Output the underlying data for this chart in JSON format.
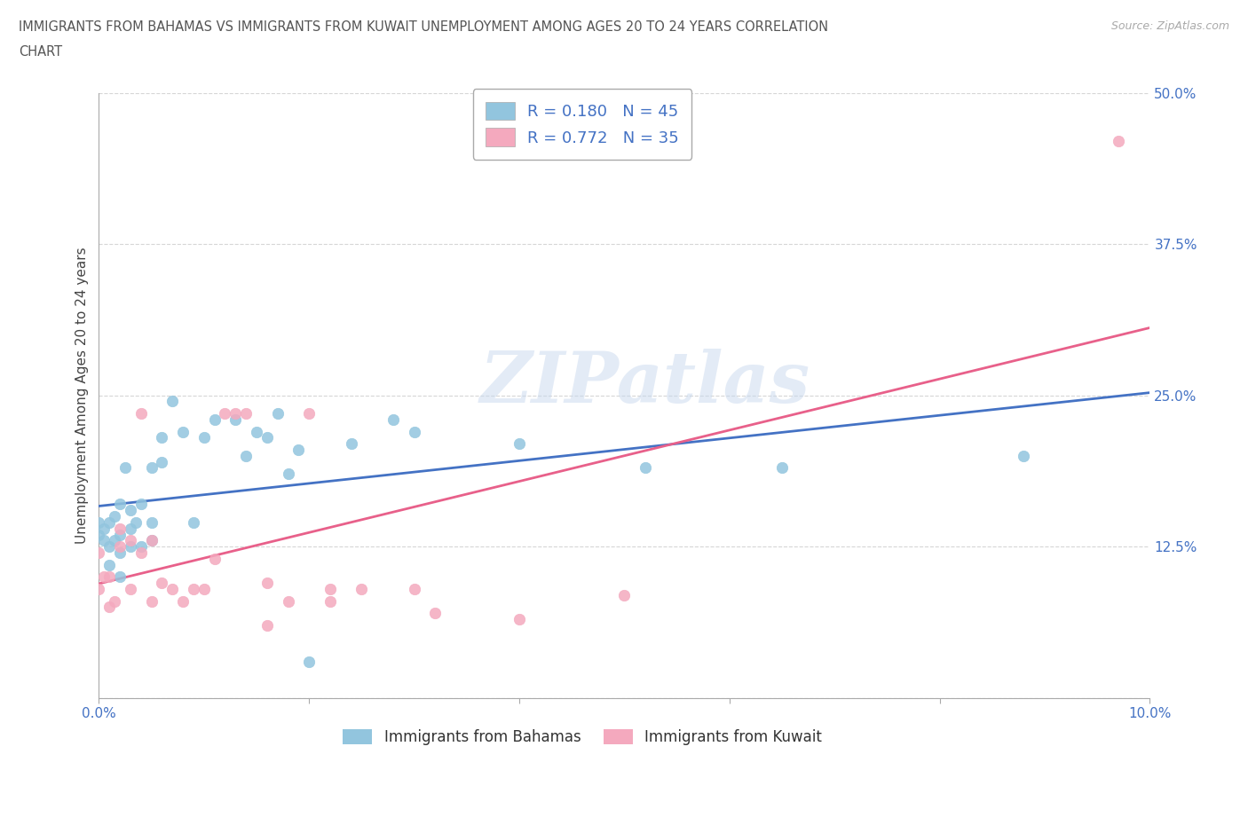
{
  "title_line1": "IMMIGRANTS FROM BAHAMAS VS IMMIGRANTS FROM KUWAIT UNEMPLOYMENT AMONG AGES 20 TO 24 YEARS CORRELATION",
  "title_line2": "CHART",
  "source": "Source: ZipAtlas.com",
  "ylabel": "Unemployment Among Ages 20 to 24 years",
  "xlim": [
    0.0,
    0.1
  ],
  "ylim": [
    0.0,
    0.5
  ],
  "yticks": [
    0.0,
    0.125,
    0.25,
    0.375,
    0.5
  ],
  "ytick_labels": [
    "",
    "12.5%",
    "25.0%",
    "37.5%",
    "50.0%"
  ],
  "xtick_positions": [
    0.0,
    0.02,
    0.04,
    0.06,
    0.08,
    0.1
  ],
  "watermark": "ZIPatlas",
  "bahamas_color": "#92c5de",
  "kuwait_color": "#f4a9be",
  "bahamas_line_color": "#4472c4",
  "kuwait_line_color": "#e8608a",
  "bahamas_R": 0.18,
  "bahamas_N": 45,
  "kuwait_R": 0.772,
  "kuwait_N": 35,
  "bahamas_x": [
    0.0,
    0.0,
    0.0005,
    0.0005,
    0.001,
    0.001,
    0.001,
    0.0015,
    0.0015,
    0.002,
    0.002,
    0.002,
    0.002,
    0.0025,
    0.003,
    0.003,
    0.003,
    0.0035,
    0.004,
    0.004,
    0.005,
    0.005,
    0.005,
    0.006,
    0.006,
    0.007,
    0.008,
    0.009,
    0.01,
    0.011,
    0.013,
    0.014,
    0.015,
    0.016,
    0.017,
    0.018,
    0.019,
    0.02,
    0.024,
    0.028,
    0.03,
    0.04,
    0.052,
    0.065,
    0.088
  ],
  "bahamas_y": [
    0.135,
    0.145,
    0.13,
    0.14,
    0.11,
    0.125,
    0.145,
    0.13,
    0.15,
    0.1,
    0.12,
    0.135,
    0.16,
    0.19,
    0.125,
    0.14,
    0.155,
    0.145,
    0.125,
    0.16,
    0.13,
    0.145,
    0.19,
    0.195,
    0.215,
    0.245,
    0.22,
    0.145,
    0.215,
    0.23,
    0.23,
    0.2,
    0.22,
    0.215,
    0.235,
    0.185,
    0.205,
    0.03,
    0.21,
    0.23,
    0.22,
    0.21,
    0.19,
    0.19,
    0.2
  ],
  "kuwait_x": [
    0.0,
    0.0,
    0.0005,
    0.001,
    0.001,
    0.0015,
    0.002,
    0.002,
    0.003,
    0.003,
    0.004,
    0.004,
    0.005,
    0.005,
    0.006,
    0.007,
    0.008,
    0.009,
    0.01,
    0.011,
    0.012,
    0.013,
    0.014,
    0.016,
    0.016,
    0.018,
    0.02,
    0.022,
    0.022,
    0.025,
    0.03,
    0.032,
    0.04,
    0.05,
    0.097
  ],
  "kuwait_y": [
    0.09,
    0.12,
    0.1,
    0.075,
    0.1,
    0.08,
    0.125,
    0.14,
    0.09,
    0.13,
    0.12,
    0.235,
    0.08,
    0.13,
    0.095,
    0.09,
    0.08,
    0.09,
    0.09,
    0.115,
    0.235,
    0.235,
    0.235,
    0.06,
    0.095,
    0.08,
    0.235,
    0.09,
    0.08,
    0.09,
    0.09,
    0.07,
    0.065,
    0.085,
    0.46
  ],
  "legend_label_bahamas": "Immigrants from Bahamas",
  "legend_label_kuwait": "Immigrants from Kuwait",
  "background_color": "#ffffff",
  "grid_color": "#cccccc",
  "title_color": "#555555",
  "tick_color": "#4472c4"
}
